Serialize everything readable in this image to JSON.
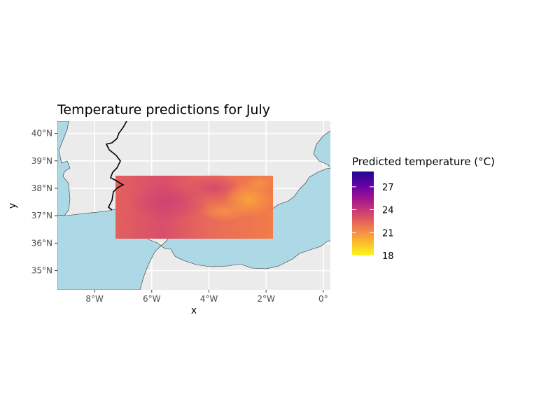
{
  "title": "Temperature predictions for July",
  "x_axis": {
    "label": "x",
    "ticks": [
      {
        "lon": -8,
        "label": "8°W"
      },
      {
        "lon": -6,
        "label": "6°W"
      },
      {
        "lon": -4,
        "label": "4°W"
      },
      {
        "lon": -2,
        "label": "2°W"
      },
      {
        "lon": 0,
        "label": "0°"
      }
    ]
  },
  "y_axis": {
    "label": "y",
    "ticks": [
      {
        "lat": 35,
        "label": "35°N"
      },
      {
        "lat": 36,
        "label": "36°N"
      },
      {
        "lat": 37,
        "label": "37°N"
      },
      {
        "lat": 38,
        "label": "38°N"
      },
      {
        "lat": 39,
        "label": "39°N"
      },
      {
        "lat": 40,
        "label": "40°N"
      }
    ]
  },
  "legend": {
    "title": "Predicted temperature (°C)",
    "ticks": [
      "27",
      "24",
      "21",
      "18"
    ],
    "tick_values": [
      27,
      24,
      21,
      18
    ],
    "scale_min": 18,
    "scale_max": 29,
    "colors": [
      "#fcf719",
      "#fbb730",
      "#f07b4e",
      "#d3436e",
      "#a3178e",
      "#6601a6",
      "#22078f"
    ]
  },
  "chart_data": {
    "type": "heatmap",
    "title": "Temperature predictions for July",
    "xlabel": "x",
    "ylabel": "y",
    "xlim": [
      -9.3,
      0.25
    ],
    "ylim": [
      34.3,
      40.45
    ],
    "grid": true,
    "legend_position": "right",
    "prediction_extent": {
      "lon": [
        -7.3,
        -1.8
      ],
      "lat": [
        36.2,
        38.5
      ]
    },
    "value_range": [
      18,
      29
    ]
  },
  "colors": {
    "sea": "#add8e6",
    "land": "#ebebeb",
    "grid": "#ffffff",
    "border": "#000000"
  }
}
